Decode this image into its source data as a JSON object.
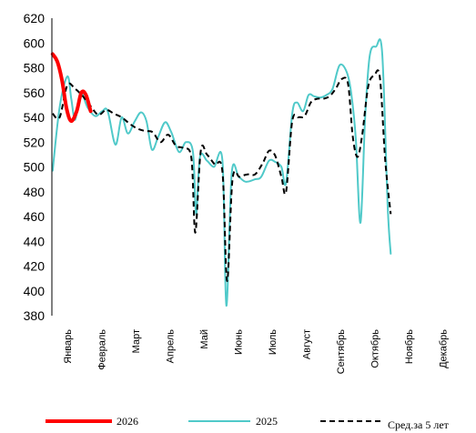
{
  "chart_data": {
    "type": "line",
    "title": "",
    "xlabel": "",
    "ylabel": "",
    "ylim": [
      380,
      620
    ],
    "yticks": [
      380,
      400,
      420,
      440,
      460,
      480,
      500,
      520,
      540,
      560,
      580,
      600,
      620
    ],
    "x_unit": "week",
    "xlim": [
      0,
      52
    ],
    "months": [
      {
        "label": "Январь",
        "x": 2
      },
      {
        "label": "Февраль",
        "x": 6.4
      },
      {
        "label": "Март",
        "x": 10.8
      },
      {
        "label": "Апрель",
        "x": 15.2
      },
      {
        "label": "Май",
        "x": 19.6
      },
      {
        "label": "Июнь",
        "x": 24
      },
      {
        "label": "Июль",
        "x": 28.4
      },
      {
        "label": "Август",
        "x": 32.8
      },
      {
        "label": "Сентябрь",
        "x": 37.2
      },
      {
        "label": "Октябрь",
        "x": 41.6
      },
      {
        "label": "Ноябрь",
        "x": 46
      },
      {
        "label": "Декабрь",
        "x": 50.4
      }
    ],
    "legend_position": "bottom",
    "grid": false,
    "series": [
      {
        "name": "2026",
        "color": "#ff0000",
        "width": 4,
        "dash": "",
        "points": [
          [
            0.1,
            591
          ],
          [
            0.7,
            585
          ],
          [
            1.3,
            570
          ],
          [
            1.9,
            547
          ],
          [
            2.5,
            537
          ],
          [
            3.2,
            545
          ],
          [
            3.8,
            560
          ],
          [
            4.4,
            558
          ],
          [
            5.0,
            545
          ]
        ]
      },
      {
        "name": "2025",
        "color": "#4fc9c9",
        "width": 2,
        "dash": "",
        "points": [
          [
            0.1,
            497
          ],
          [
            1.0,
            548
          ],
          [
            2.0,
            573
          ],
          [
            2.5,
            555
          ],
          [
            3.0,
            538
          ],
          [
            3.7,
            560
          ],
          [
            4.6,
            548
          ],
          [
            5.6,
            541
          ],
          [
            6.5,
            545
          ],
          [
            7.2,
            545
          ],
          [
            8.2,
            518
          ],
          [
            9.0,
            540
          ],
          [
            9.8,
            527
          ],
          [
            10.7,
            537
          ],
          [
            11.5,
            544
          ],
          [
            12.2,
            537
          ],
          [
            12.9,
            514
          ],
          [
            13.7,
            524
          ],
          [
            14.6,
            536
          ],
          [
            15.4,
            528
          ],
          [
            16.4,
            512
          ],
          [
            17.3,
            520
          ],
          [
            18.2,
            512
          ],
          [
            18.6,
            462
          ],
          [
            19.1,
            508
          ],
          [
            20.0,
            505
          ],
          [
            20.9,
            500
          ],
          [
            22.0,
            505
          ],
          [
            22.5,
            388
          ],
          [
            23.2,
            495
          ],
          [
            24.1,
            492
          ],
          [
            25.0,
            488
          ],
          [
            26.2,
            490
          ],
          [
            27.0,
            492
          ],
          [
            28.0,
            505
          ],
          [
            28.8,
            504
          ],
          [
            29.6,
            500
          ],
          [
            30.2,
            487
          ],
          [
            31.0,
            543
          ],
          [
            31.6,
            552
          ],
          [
            32.4,
            545
          ],
          [
            33.1,
            558
          ],
          [
            33.8,
            557
          ],
          [
            34.6,
            556
          ],
          [
            35.4,
            558
          ],
          [
            36.2,
            563
          ],
          [
            37.1,
            582
          ],
          [
            38.0,
            577
          ],
          [
            38.6,
            560
          ],
          [
            39.2,
            522
          ],
          [
            39.8,
            455
          ],
          [
            40.4,
            540
          ],
          [
            41.0,
            590
          ],
          [
            41.8,
            597
          ],
          [
            42.6,
            592
          ],
          [
            43.3,
            470
          ],
          [
            43.7,
            430
          ]
        ]
      },
      {
        "name": "Сред.за 5 лет",
        "color": "#000000",
        "width": 2,
        "dash": "6,4",
        "points": [
          [
            0.1,
            543
          ],
          [
            1.0,
            540
          ],
          [
            2.0,
            566
          ],
          [
            3.0,
            563
          ],
          [
            4.0,
            557
          ],
          [
            5.0,
            549
          ],
          [
            6.0,
            542
          ],
          [
            7.0,
            546
          ],
          [
            8.0,
            543
          ],
          [
            9.0,
            540
          ],
          [
            10.0,
            535
          ],
          [
            11.0,
            531
          ],
          [
            12.0,
            529
          ],
          [
            13.0,
            528
          ],
          [
            14.0,
            520
          ],
          [
            15.0,
            526
          ],
          [
            16.0,
            517
          ],
          [
            17.0,
            515
          ],
          [
            18.0,
            507
          ],
          [
            18.5,
            447
          ],
          [
            19.2,
            513
          ],
          [
            20.0,
            510
          ],
          [
            21.0,
            502
          ],
          [
            22.0,
            496
          ],
          [
            22.6,
            408
          ],
          [
            23.3,
            490
          ],
          [
            24.2,
            492
          ],
          [
            25.2,
            494
          ],
          [
            26.2,
            494
          ],
          [
            27.2,
            503
          ],
          [
            28.0,
            513
          ],
          [
            28.8,
            509
          ],
          [
            29.6,
            492
          ],
          [
            30.2,
            480
          ],
          [
            31.0,
            537
          ],
          [
            31.8,
            540
          ],
          [
            32.6,
            541
          ],
          [
            33.4,
            552
          ],
          [
            34.2,
            555
          ],
          [
            35.0,
            555
          ],
          [
            35.8,
            557
          ],
          [
            36.6,
            563
          ],
          [
            37.4,
            571
          ],
          [
            38.2,
            567
          ],
          [
            38.8,
            525
          ],
          [
            39.4,
            508
          ],
          [
            40.0,
            525
          ],
          [
            40.8,
            565
          ],
          [
            41.6,
            574
          ],
          [
            42.3,
            572
          ],
          [
            43.0,
            505
          ],
          [
            43.7,
            462
          ]
        ]
      }
    ]
  }
}
